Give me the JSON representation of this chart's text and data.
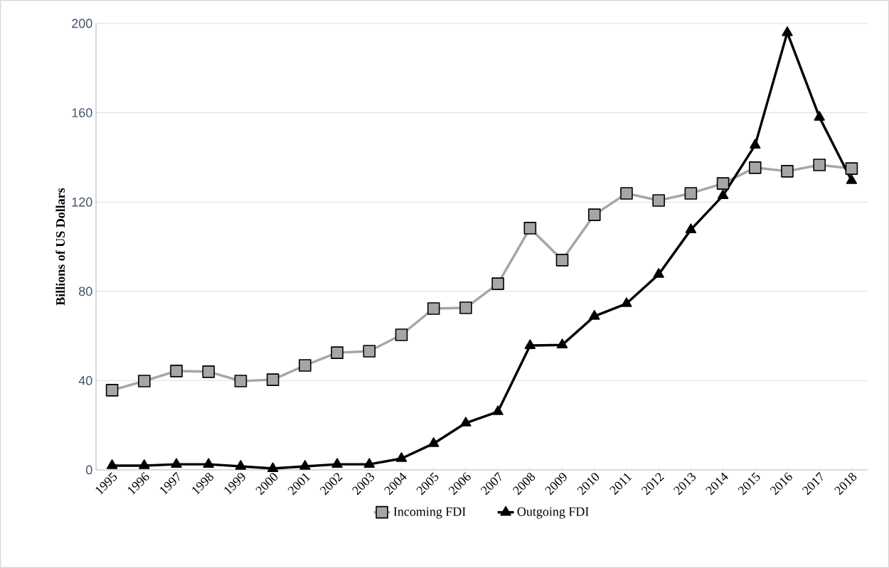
{
  "chart_data": {
    "type": "line",
    "ylabel": "Billions of US Dollars",
    "categories": [
      "1995",
      "1996",
      "1997",
      "1998",
      "1999",
      "2000",
      "2001",
      "2002",
      "2003",
      "2004",
      "2005",
      "2006",
      "2007",
      "2008",
      "2009",
      "2010",
      "2011",
      "2012",
      "2013",
      "2014",
      "2015",
      "2016",
      "2017",
      "2018"
    ],
    "series": [
      {
        "name": "Incoming FDI",
        "color": "#a6a6a6",
        "marker": "square",
        "values": [
          35.7,
          39.8,
          44.3,
          44,
          39.8,
          40.4,
          46.8,
          52.5,
          53.2,
          60.5,
          72.3,
          72.6,
          83.4,
          108.3,
          94,
          114.3,
          123.9,
          120.7,
          123.9,
          128.3,
          135.4,
          133.8,
          136.6,
          135
        ]
      },
      {
        "name": "Outgoing FDI",
        "color": "#000000",
        "marker": "triangle",
        "values": [
          1.9,
          1.9,
          2.5,
          2.5,
          1.6,
          0.6,
          1.6,
          2.5,
          2.5,
          5.1,
          11.8,
          21,
          26.1,
          55.7,
          56,
          68.8,
          74.5,
          87.6,
          107.6,
          122.9,
          145.5,
          195.9,
          158,
          129.6
        ]
      }
    ],
    "ylim": [
      0,
      200
    ],
    "yticks": [
      0,
      40,
      80,
      120,
      160,
      200
    ],
    "grid": "y",
    "legend": "bottom",
    "line_style": "solid"
  }
}
